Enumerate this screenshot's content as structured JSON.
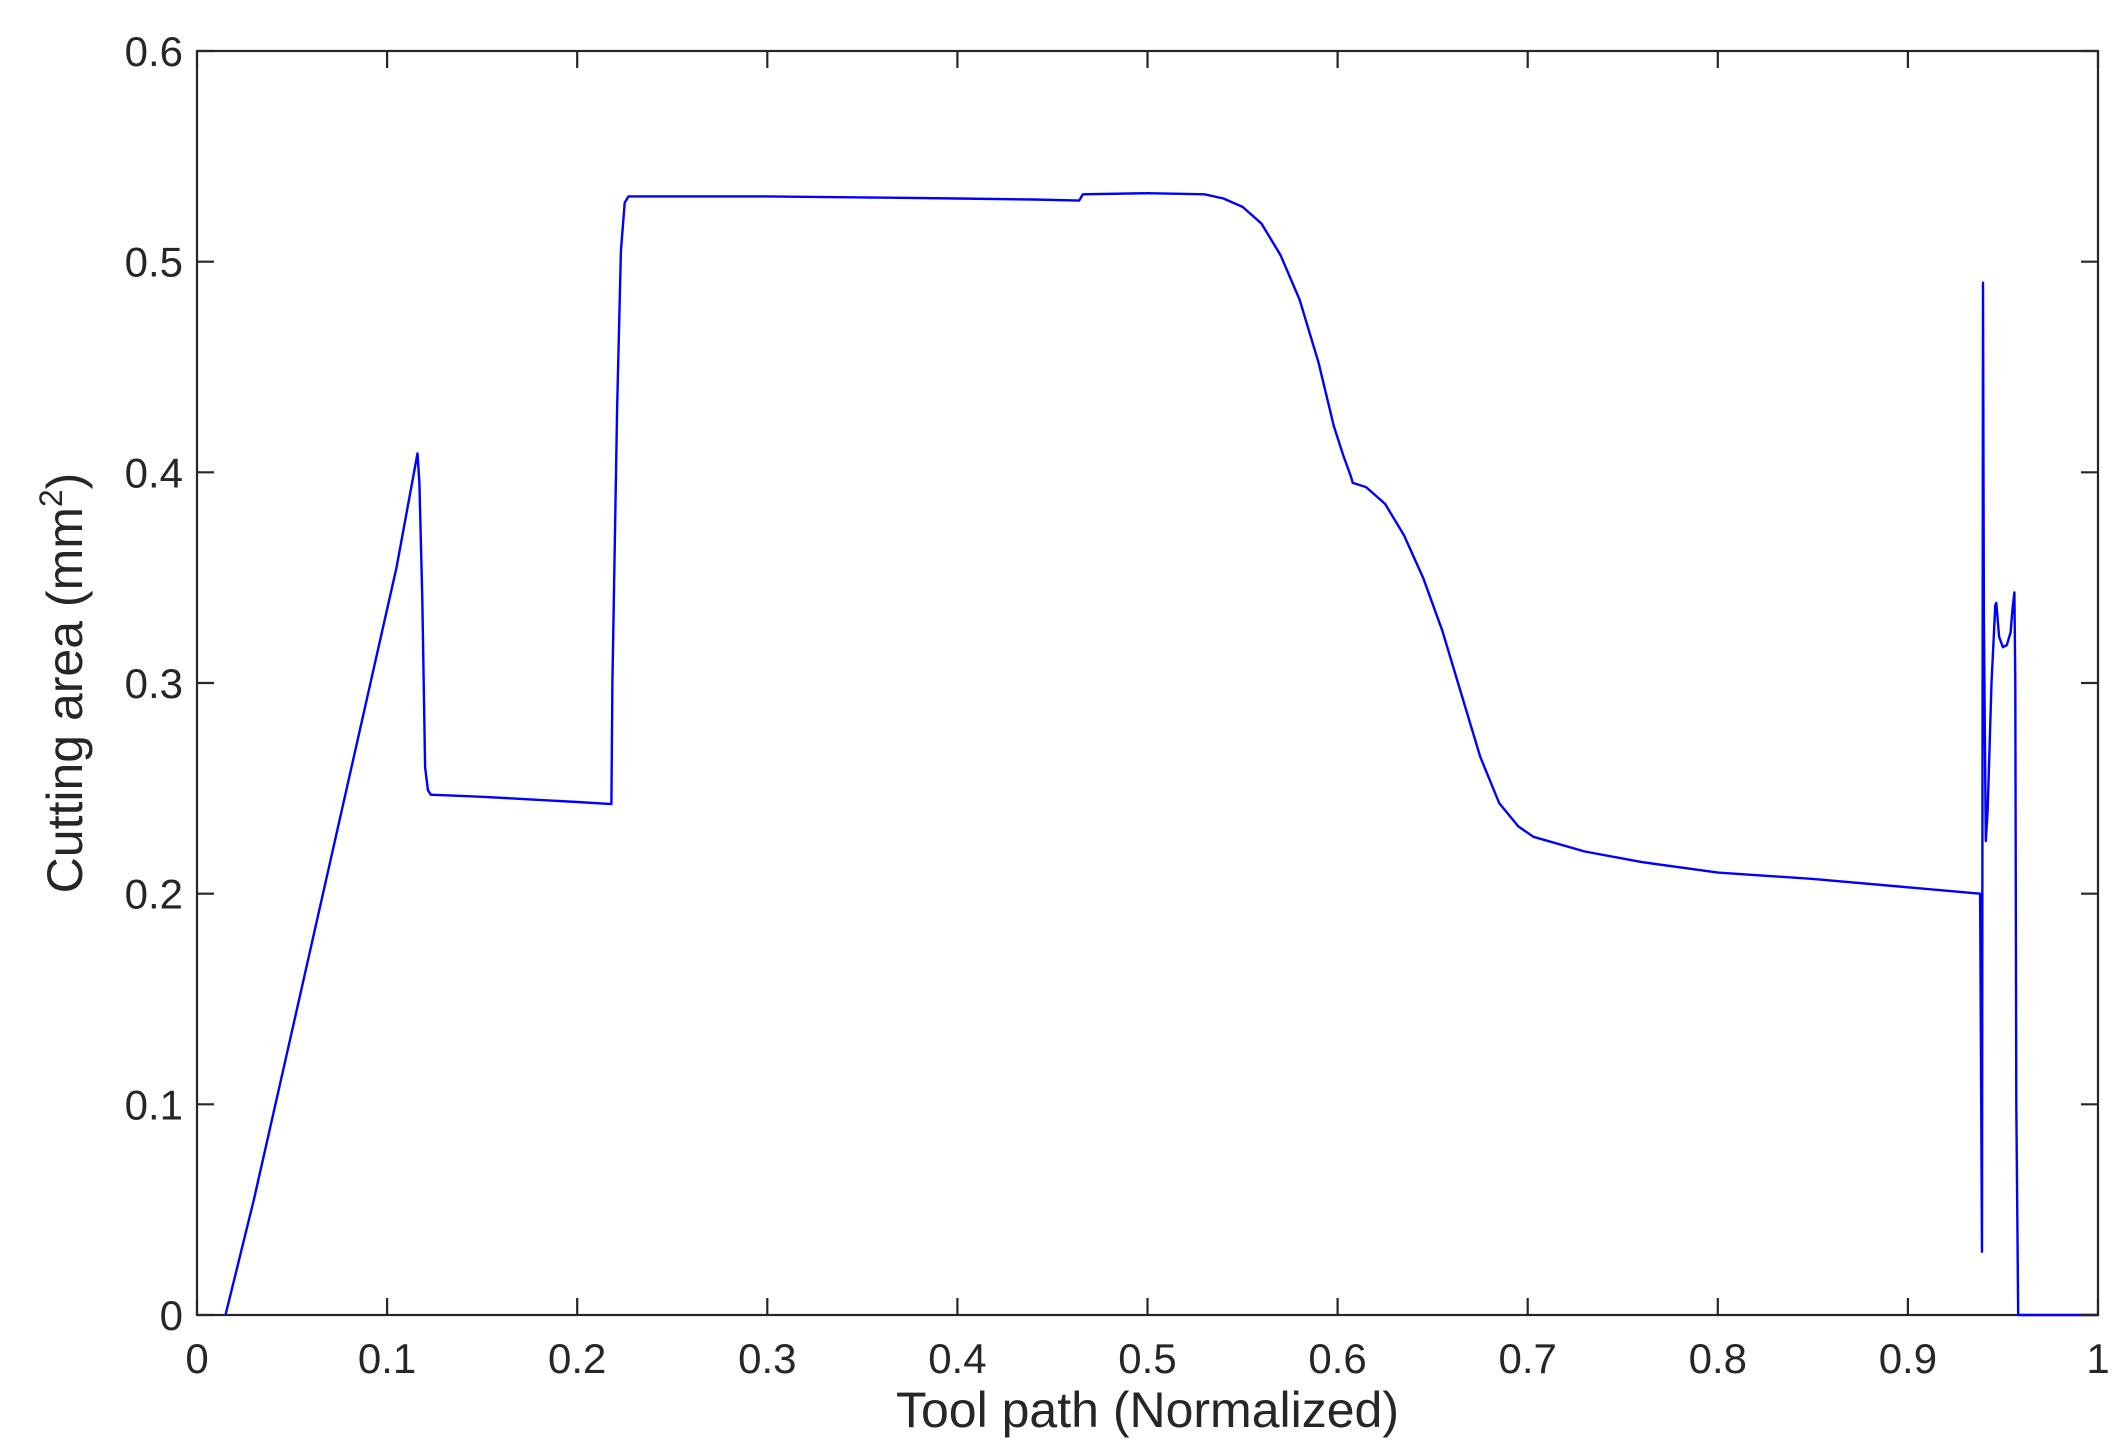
{
  "chart_data": {
    "type": "line",
    "title": "",
    "xlabel": "Tool path (Normalized)",
    "ylabel_main": "Cutting area (mm",
    "ylabel_sup": "2",
    "ylabel_close": ")",
    "xlim": [
      0,
      1
    ],
    "ylim": [
      0,
      0.6
    ],
    "grid": false,
    "legend": "none",
    "xticks": [
      0,
      0.1,
      0.2,
      0.3,
      0.4,
      0.5,
      0.6,
      0.7,
      0.8,
      0.9,
      1
    ],
    "xtick_labels": [
      "0",
      "0.1",
      "0.2",
      "0.3",
      "0.4",
      "0.5",
      "0.6",
      "0.7",
      "0.8",
      "0.9",
      "1"
    ],
    "yticks": [
      0,
      0.1,
      0.2,
      0.3,
      0.4,
      0.5,
      0.6
    ],
    "ytick_labels": [
      "0",
      "0.1",
      "0.2",
      "0.3",
      "0.4",
      "0.5",
      "0.6"
    ],
    "series": [
      {
        "color": "#0000ff",
        "x": [
          0.015,
          0.03,
          0.05,
          0.07,
          0.09,
          0.105,
          0.116,
          0.117,
          0.1185,
          0.12,
          0.1215,
          0.123,
          0.15,
          0.18,
          0.2,
          0.218,
          0.2185,
          0.221,
          0.223,
          0.225,
          0.227,
          0.26,
          0.3,
          0.35,
          0.4,
          0.44,
          0.464,
          0.466,
          0.5,
          0.53,
          0.54,
          0.55,
          0.56,
          0.57,
          0.58,
          0.59,
          0.598,
          0.603,
          0.605,
          0.607,
          0.608,
          0.615,
          0.625,
          0.635,
          0.645,
          0.655,
          0.665,
          0.675,
          0.685,
          0.695,
          0.703,
          0.73,
          0.76,
          0.8,
          0.85,
          0.9,
          0.938,
          0.939,
          0.9395,
          0.94,
          0.941,
          0.942,
          0.944,
          0.946,
          0.9465,
          0.948,
          0.95,
          0.952,
          0.954,
          0.955,
          0.956,
          0.9565,
          0.957,
          0.958,
          0.959,
          0.97,
          1.0
        ],
        "y": [
          0.0,
          0.055,
          0.135,
          0.215,
          0.295,
          0.355,
          0.409,
          0.395,
          0.34,
          0.26,
          0.249,
          0.247,
          0.246,
          0.2445,
          0.2435,
          0.2425,
          0.3,
          0.43,
          0.505,
          0.528,
          0.531,
          0.531,
          0.531,
          0.5305,
          0.53,
          0.5295,
          0.529,
          0.532,
          0.5325,
          0.532,
          0.53,
          0.526,
          0.518,
          0.503,
          0.482,
          0.452,
          0.422,
          0.408,
          0.403,
          0.398,
          0.395,
          0.393,
          0.385,
          0.37,
          0.35,
          0.325,
          0.295,
          0.265,
          0.243,
          0.232,
          0.227,
          0.22,
          0.215,
          0.21,
          0.207,
          0.203,
          0.2,
          0.03,
          0.49,
          0.33,
          0.225,
          0.24,
          0.3,
          0.337,
          0.338,
          0.322,
          0.317,
          0.318,
          0.324,
          0.335,
          0.343,
          0.3,
          0.1,
          0.0,
          0.0,
          0.0,
          0.0
        ]
      }
    ]
  }
}
